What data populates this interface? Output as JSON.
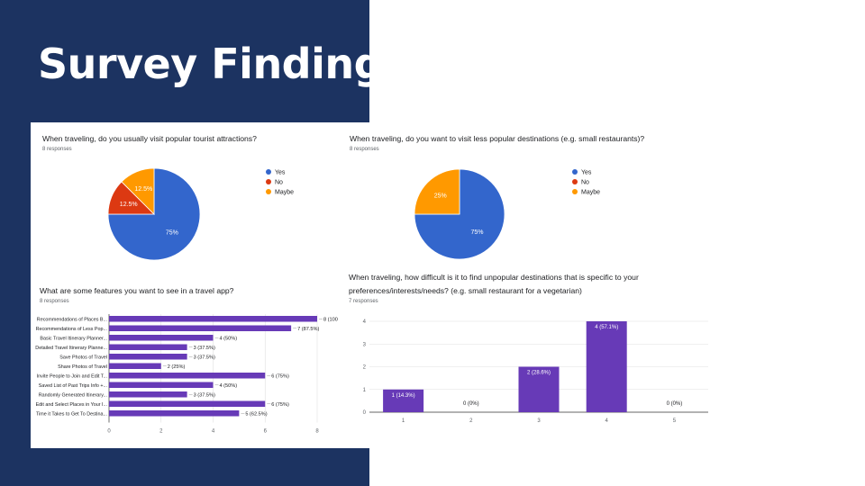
{
  "slide": {
    "title": "Survey Findings"
  },
  "colors": {
    "panel": "#1c3361",
    "yes": "#3366cc",
    "no": "#dc3912",
    "maybe": "#ff9900",
    "bar": "#673ab7"
  },
  "charts": {
    "popular": {
      "question": "When traveling, do you usually visit popular tourist attractions?",
      "responses": "8 responses",
      "legend": [
        "Yes",
        "No",
        "Maybe"
      ],
      "slice_labels": [
        "75%",
        "12.5%",
        "12.5%"
      ]
    },
    "less_popular": {
      "question": "When traveling, do you want to visit less popular destinations (e.g. small restaurants)?",
      "responses": "8 responses",
      "legend": [
        "Yes",
        "No",
        "Maybe"
      ],
      "slice_labels": [
        "75%",
        "",
        "25%"
      ]
    },
    "features": {
      "question": "What are some features you want to see in a travel app?",
      "responses": "8 responses"
    },
    "difficulty": {
      "question": "When traveling, how difficult is it to find unpopular destinations that is specific to your preferences/interests/needs? (e.g. small restaurant for a vegetarian)",
      "responses": "7 responses"
    }
  },
  "chart_data": [
    {
      "type": "pie",
      "title": "When traveling, do you usually visit popular tourist attractions?",
      "categories": [
        "Yes",
        "No",
        "Maybe"
      ],
      "values": [
        75,
        12.5,
        12.5
      ],
      "colors": [
        "#3366cc",
        "#dc3912",
        "#ff9900"
      ],
      "legend": "right"
    },
    {
      "type": "pie",
      "title": "When traveling, do you want to visit less popular destinations (e.g. small restaurants)?",
      "categories": [
        "Yes",
        "No",
        "Maybe"
      ],
      "values": [
        75,
        0,
        25
      ],
      "colors": [
        "#3366cc",
        "#dc3912",
        "#ff9900"
      ],
      "legend": "right"
    },
    {
      "type": "bar",
      "orientation": "horizontal",
      "title": "What are some features you want to see in a travel app?",
      "categories": [
        "Recommendations of Places B...",
        "Recommendations of Less Pop...",
        "Basic Travel Itinerary Planner...",
        "Detailed Travel Itinerary Planne...",
        "Save Photos of Travel",
        "Share Photos of Travel",
        "Invite People to Join and Edit T...",
        "Saved List of Past Trips Info +...",
        "Randomly Generated Itinerary...",
        "Edit and Select Places in Your I...",
        "Time it Takes to Get To Destina..."
      ],
      "values": [
        8,
        7,
        4,
        3,
        3,
        2,
        6,
        4,
        3,
        6,
        5
      ],
      "data_labels": [
        "8 (100",
        "7 (87.5%)",
        "4 (50%)",
        "3 (37.5%)",
        "3 (37.5%)",
        "2 (25%)",
        "6 (75%)",
        "4 (50%)",
        "3 (37.5%)",
        "6 (75%)",
        "5 (62.5%)"
      ],
      "ticks": [
        0,
        2,
        4,
        6,
        8
      ],
      "xlim": [
        0,
        8
      ],
      "grid": true
    },
    {
      "type": "bar",
      "title": "When traveling, how difficult is it to find unpopular destinations that is specific to your preferences/interests/needs? (e.g. small restaurant for a vegetarian)",
      "categories": [
        "1",
        "2",
        "3",
        "4",
        "5"
      ],
      "values": [
        1,
        0,
        2,
        4,
        0
      ],
      "data_labels": [
        "1 (14.3%)",
        "0 (0%)",
        "2 (28.6%)",
        "4 (57.1%)",
        "0 (0%)"
      ],
      "ticks": [
        0,
        1,
        2,
        3,
        4
      ],
      "ylim": [
        0,
        4
      ],
      "grid": true
    }
  ]
}
